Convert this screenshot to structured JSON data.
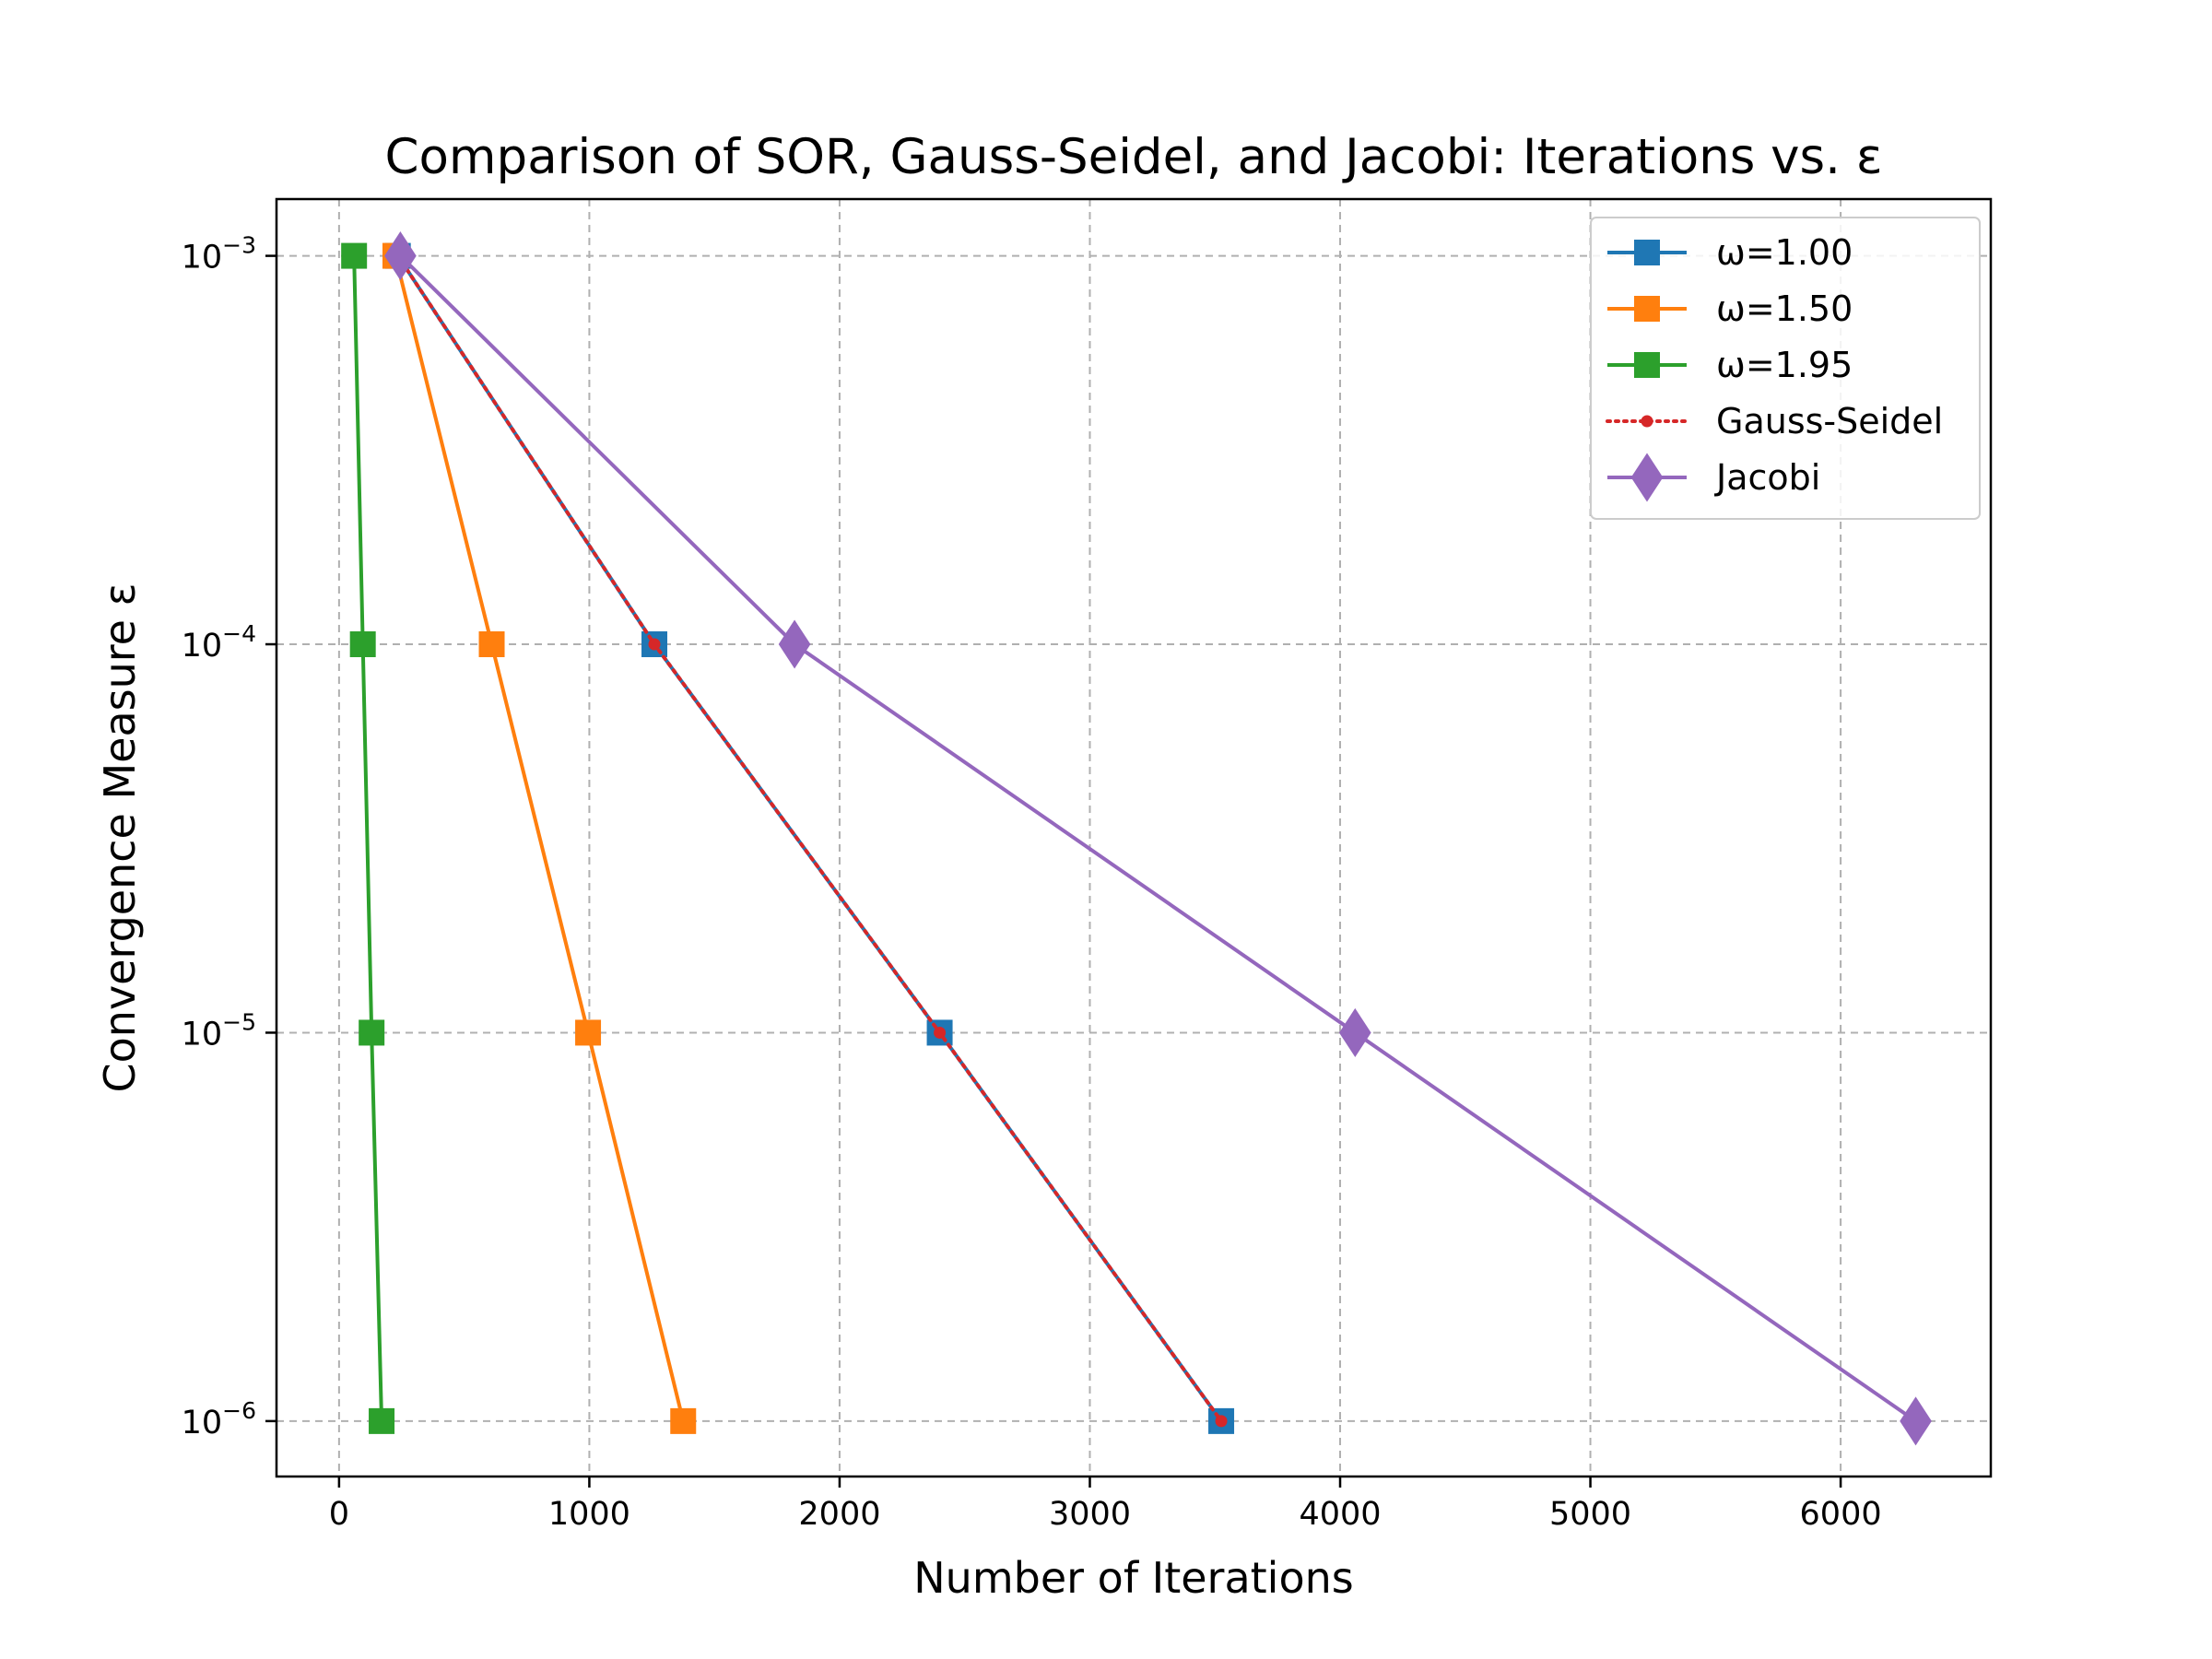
{
  "chart_data": {
    "type": "line",
    "title": "Comparison of SOR, Gauss-Seidel, and Jacobi: Iterations vs. ε",
    "xlabel": "Number of Iterations",
    "ylabel": "Convergence Measure ε",
    "xlim": [
      -250,
      6600
    ],
    "ylim": [
      7.2e-07,
      0.0014
    ],
    "yscale": "log",
    "grid": true,
    "legend_position": "top-right",
    "xticks": [
      0,
      1000,
      2000,
      3000,
      4000,
      5000,
      6000
    ],
    "yticks": [
      {
        "value": 0.001,
        "base": "10",
        "exp": "−3"
      },
      {
        "value": 0.0001,
        "base": "10",
        "exp": "−4"
      },
      {
        "value": 1e-05,
        "base": "10",
        "exp": "−5"
      },
      {
        "value": 1e-06,
        "base": "10",
        "exp": "−6"
      }
    ],
    "series": [
      {
        "name": "ω=1.00",
        "color": "#1f77b4",
        "marker": "square",
        "line": "solid",
        "points": [
          [
            235,
            0.001
          ],
          [
            1260,
            0.0001
          ],
          [
            2400,
            1e-05
          ],
          [
            3525,
            1e-06
          ]
        ]
      },
      {
        "name": "ω=1.50",
        "color": "#ff7f0e",
        "marker": "square",
        "line": "solid",
        "points": [
          [
            225,
            0.001
          ],
          [
            610,
            0.0001
          ],
          [
            995,
            1e-05
          ],
          [
            1375,
            1e-06
          ]
        ]
      },
      {
        "name": "ω=1.95",
        "color": "#2ca02c",
        "marker": "square",
        "line": "solid",
        "points": [
          [
            60,
            0.001
          ],
          [
            95,
            0.0001
          ],
          [
            130,
            1e-05
          ],
          [
            170,
            1e-06
          ]
        ]
      },
      {
        "name": "Gauss-Seidel",
        "color": "#d62728",
        "marker": "circle",
        "line": "dotted",
        "points": [
          [
            235,
            0.001
          ],
          [
            1260,
            0.0001
          ],
          [
            2400,
            1e-05
          ],
          [
            3525,
            1e-06
          ]
        ]
      },
      {
        "name": "Jacobi",
        "color": "#9467bd",
        "marker": "diamond",
        "line": "solid",
        "points": [
          [
            245,
            0.001
          ],
          [
            1820,
            0.0001
          ],
          [
            4060,
            1e-05
          ],
          [
            6300,
            1e-06
          ]
        ]
      }
    ]
  }
}
